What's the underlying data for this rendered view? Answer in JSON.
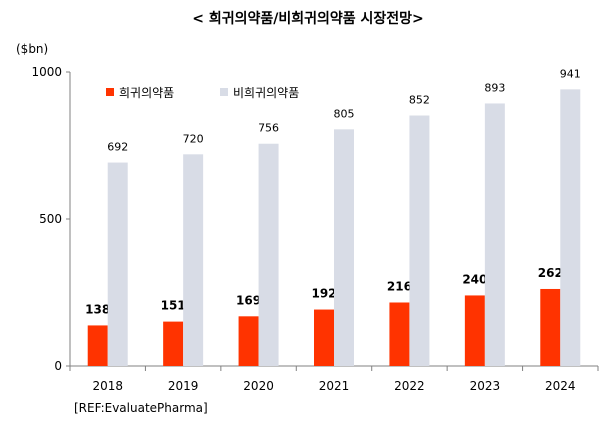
{
  "colors": {
    "rare": "#FF3300",
    "nonrare": "#D8DCE6",
    "axis": "#808080"
  },
  "chart_data": {
    "type": "bar",
    "title": "< 희귀의약품/비희귀의약품 시장전망>",
    "unit": "($bn)",
    "source": "[REF:EvaluatePharma]",
    "categories": [
      "2018",
      "2019",
      "2020",
      "2021",
      "2022",
      "2023",
      "2024"
    ],
    "series": [
      {
        "name": "희귀의약품",
        "values": [
          138,
          151,
          169,
          192,
          216,
          240,
          262
        ]
      },
      {
        "name": "비희귀의약품",
        "values": [
          692,
          720,
          756,
          805,
          852,
          893,
          941
        ]
      }
    ],
    "ylim": [
      0,
      1000
    ],
    "yticks": [
      "0",
      "500",
      "1000"
    ],
    "grid": false,
    "legend": "top-left"
  }
}
